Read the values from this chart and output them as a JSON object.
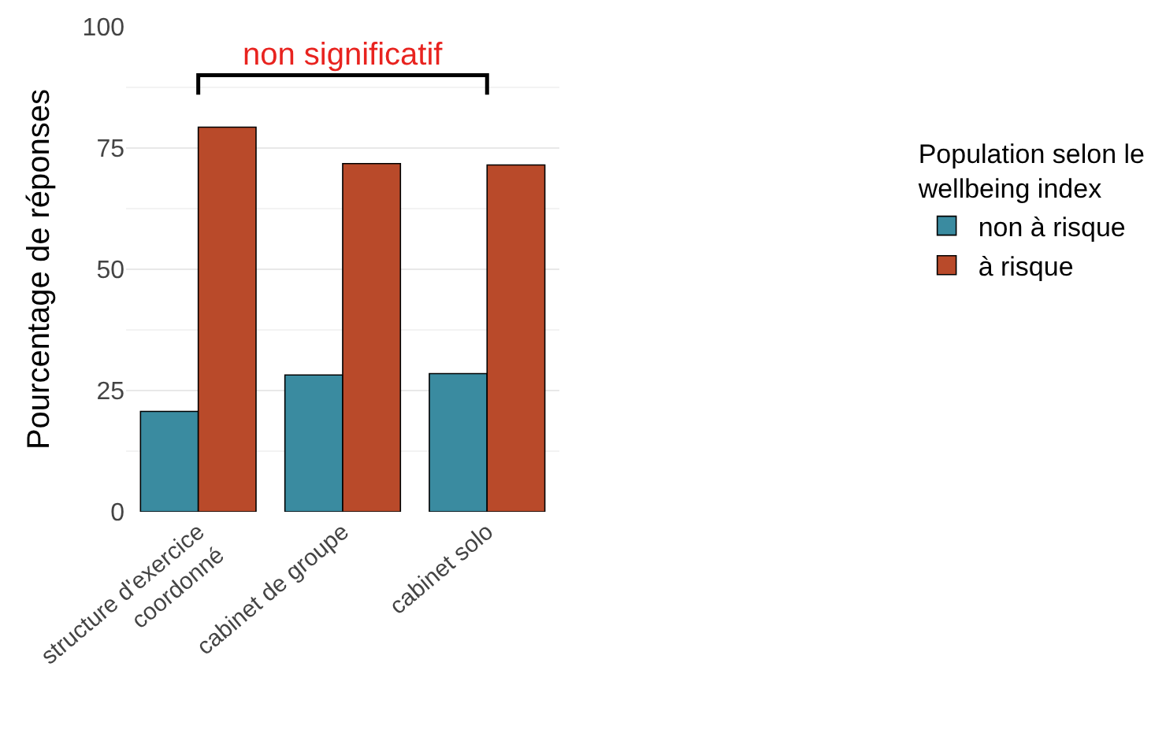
{
  "chart_data": {
    "type": "bar",
    "ylabel": "Pourcentage de réponses",
    "legend_title": "Population selon le\nwellbeing index",
    "categories": [
      "structure d'exercice\ncoordonné",
      "cabinet de groupe",
      "cabinet solo"
    ],
    "series": [
      {
        "name": "non à risque",
        "color": "#3a8ba0",
        "values": [
          20.7,
          28.2,
          28.5
        ]
      },
      {
        "name": "à risque",
        "color": "#b94a2a",
        "values": [
          79.3,
          71.8,
          71.5
        ]
      }
    ],
    "ylim": [
      0,
      100
    ],
    "yticks": [
      0,
      25,
      50,
      75,
      100
    ],
    "grid": "y",
    "legend": "right",
    "annotations": [
      "non significatif"
    ]
  }
}
